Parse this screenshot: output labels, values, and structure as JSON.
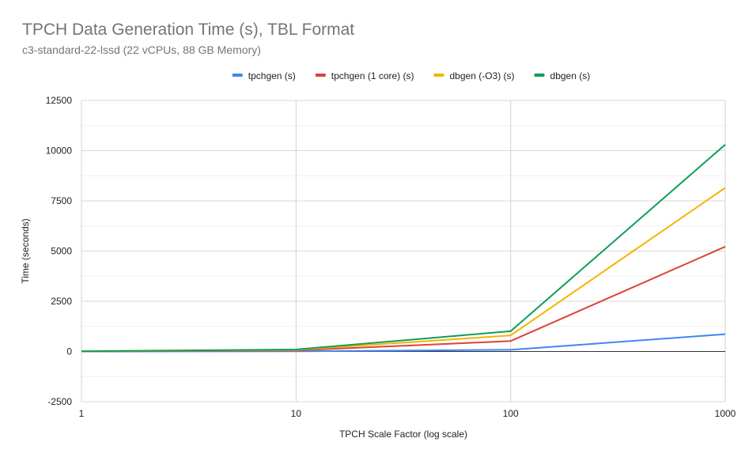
{
  "chart_data": {
    "type": "line",
    "title": "TPCH Data Generation Time (s), TBL Format",
    "subtitle": "c3-standard-22-lssd (22 vCPUs, 88 GB Memory)",
    "xlabel": "TPCH Scale Factor (log scale)",
    "ylabel": "Time (seconds)",
    "x_scale": "log",
    "xlim": [
      1,
      1000
    ],
    "ylim": [
      -2500,
      12500
    ],
    "x_ticks": [
      1,
      10,
      100,
      1000
    ],
    "x_tick_labels": [
      "1",
      "10",
      "100",
      "1000"
    ],
    "y_ticks": [
      -2500,
      0,
      2500,
      5000,
      7500,
      10000,
      12500
    ],
    "y_tick_labels": [
      "-2500",
      "0",
      "2500",
      "5000",
      "7500",
      "10000",
      "12500"
    ],
    "grid": true,
    "legend_position": "top",
    "x": [
      1,
      10,
      100,
      1000
    ],
    "series": [
      {
        "name": "tpchgen (s)",
        "color": "#4285f4",
        "values": [
          1,
          9,
          85,
          860
        ]
      },
      {
        "name": "tpchgen (1 core) (s)",
        "color": "#db4437",
        "values": [
          5,
          52,
          520,
          5220
        ]
      },
      {
        "name": "dbgen (-O3) (s)",
        "color": "#f4b400",
        "values": [
          8,
          80,
          800,
          8150
        ]
      },
      {
        "name": "dbgen (s)",
        "color": "#0f9d58",
        "values": [
          10,
          100,
          1010,
          10300
        ]
      }
    ]
  }
}
